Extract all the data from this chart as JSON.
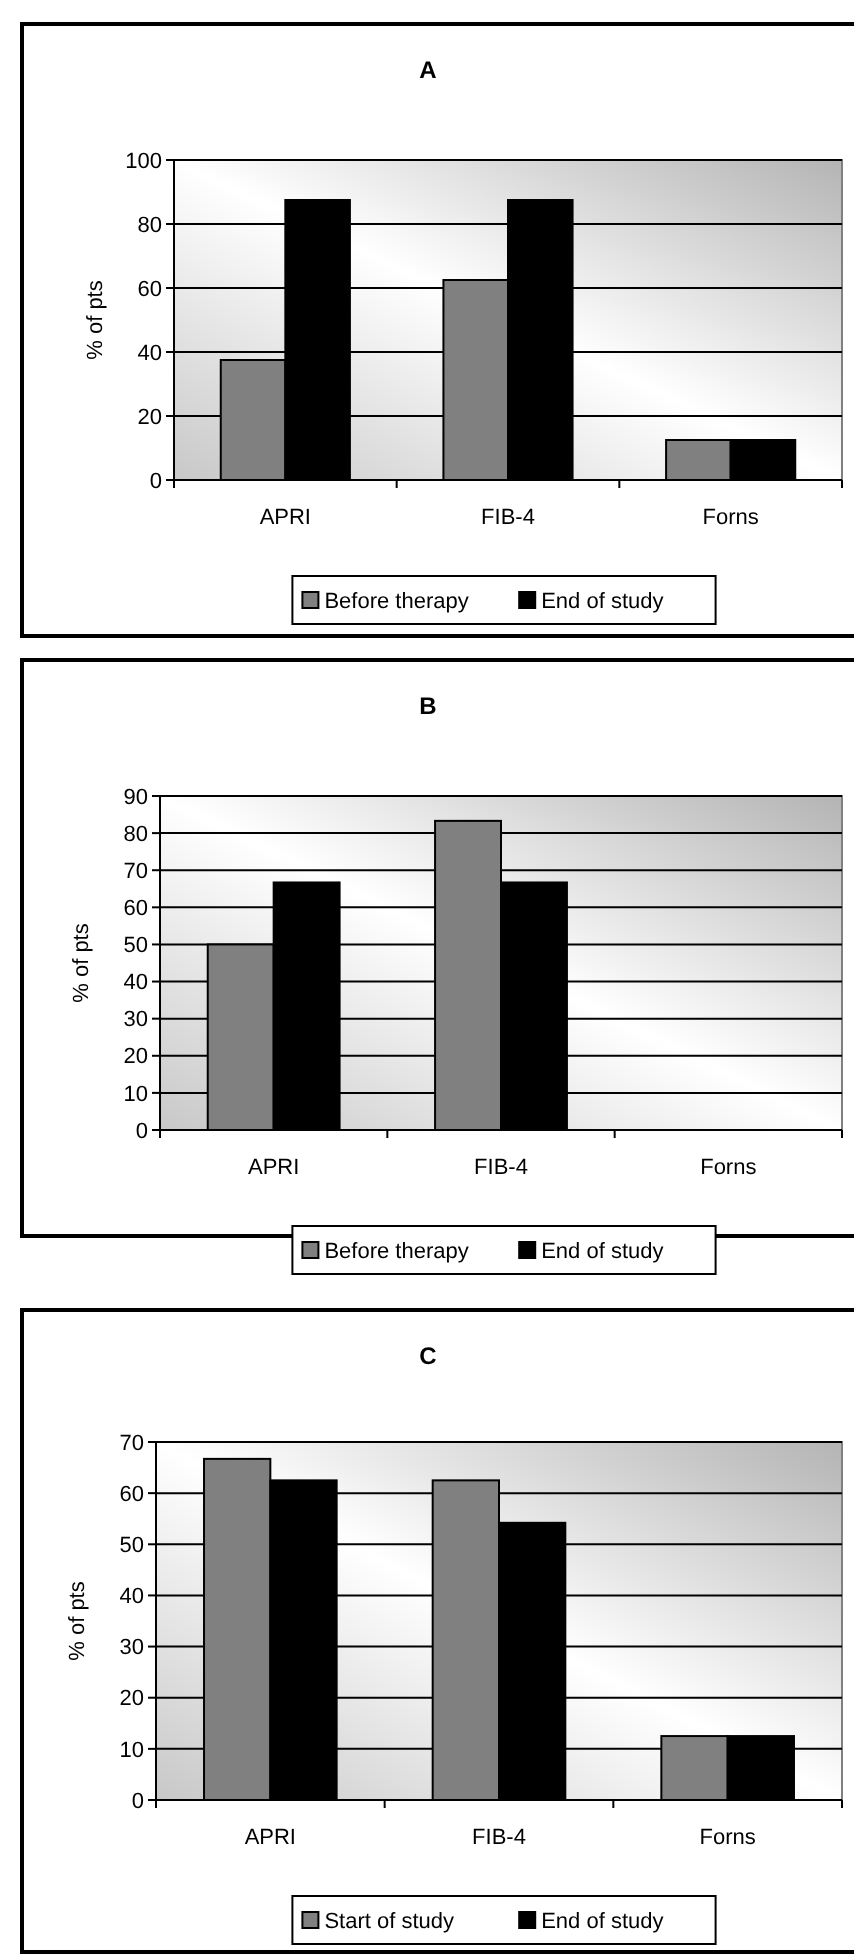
{
  "chart_data": [
    {
      "type": "bar",
      "title": "A",
      "ylabel": "% of pts",
      "categories": [
        "APRI",
        "FIB-4",
        "Forns"
      ],
      "series": [
        {
          "name": "Before therapy",
          "color": "#808080",
          "values": [
            37.5,
            62.5,
            12.5
          ]
        },
        {
          "name": "End of study",
          "color": "#000000",
          "values": [
            87.5,
            87.5,
            12.5
          ]
        }
      ],
      "ylim": [
        0,
        100
      ],
      "yticks": [
        0,
        20,
        40,
        60,
        80,
        100
      ],
      "grid": "y",
      "legend": "bottom"
    },
    {
      "type": "bar",
      "title": "B",
      "ylabel": "% of pts",
      "categories": [
        "APRI",
        "FIB-4",
        "Forns"
      ],
      "series": [
        {
          "name": "Before therapy",
          "color": "#808080",
          "values": [
            50,
            83.3,
            0
          ]
        },
        {
          "name": "End of study",
          "color": "#000000",
          "values": [
            66.7,
            66.7,
            0
          ]
        }
      ],
      "ylim": [
        0,
        90
      ],
      "yticks": [
        0,
        10,
        20,
        30,
        40,
        50,
        60,
        70,
        80,
        90
      ],
      "grid": "y",
      "legend": "bottom"
    },
    {
      "type": "bar",
      "title": "C",
      "ylabel": "% of pts",
      "categories": [
        "APRI",
        "FIB-4",
        "Forns"
      ],
      "series": [
        {
          "name": "Start of study",
          "color": "#808080",
          "values": [
            66.7,
            62.5,
            12.5
          ]
        },
        {
          "name": "End of study",
          "color": "#000000",
          "values": [
            62.5,
            54.2,
            12.5
          ]
        }
      ],
      "ylim": [
        0,
        70
      ],
      "yticks": [
        0,
        10,
        20,
        30,
        40,
        50,
        60,
        70
      ],
      "grid": "y",
      "legend": "bottom"
    }
  ]
}
